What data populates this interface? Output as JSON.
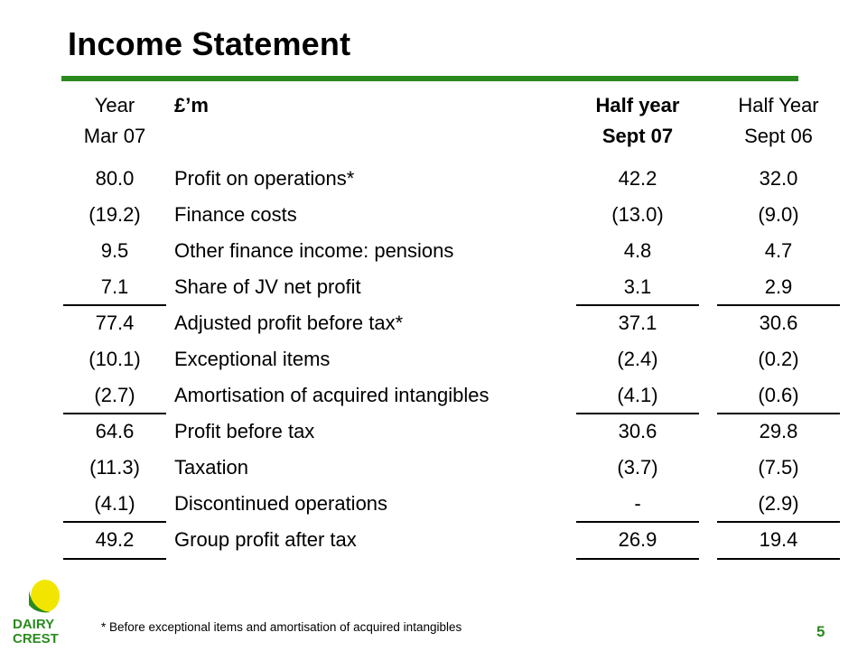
{
  "title": "Income Statement",
  "headers": {
    "year": [
      "Year",
      "Mar 07"
    ],
    "label": "£’m",
    "half1": [
      "Half year",
      "Sept 07"
    ],
    "half2": [
      "Half Year",
      "Sept 06"
    ]
  },
  "rows": [
    {
      "year": "80.0",
      "label": "Profit on operations*",
      "h1": "42.2",
      "h2": "32.0"
    },
    {
      "year": "(19.2)",
      "label": "Finance costs",
      "h1": "(13.0)",
      "h2": "(9.0)"
    },
    {
      "year": "9.5",
      "label": "Other finance income: pensions",
      "h1": "4.8",
      "h2": "4.7"
    },
    {
      "year": "7.1",
      "label": "Share of JV net profit",
      "h1": "3.1",
      "h2": "2.9"
    },
    {
      "year": "77.4",
      "label": "Adjusted profit before tax*",
      "h1": "37.1",
      "h2": "30.6"
    },
    {
      "year": "(10.1)",
      "label": "Exceptional items",
      "h1": "(2.4)",
      "h2": "(0.2)"
    },
    {
      "year": "(2.7)",
      "label": "Amortisation of acquired intangibles",
      "h1": "(4.1)",
      "h2": "(0.6)"
    },
    {
      "year": "64.6",
      "label": "Profit before tax",
      "h1": "30.6",
      "h2": "29.8"
    },
    {
      "year": "(11.3)",
      "label": "Taxation",
      "h1": "(3.7)",
      "h2": "(7.5)"
    },
    {
      "year": "(4.1)",
      "label": "Discontinued operations",
      "h1": "-",
      "h2": "(2.9)"
    },
    {
      "year": "49.2",
      "label": "Group profit after tax",
      "h1": "26.9",
      "h2": "19.4"
    }
  ],
  "footnote": "* Before exceptional items and amortisation of acquired intangibles",
  "page_number": "5",
  "logo": {
    "text_top": "DAIRY",
    "text_bottom": "CREST",
    "icon": "sun-logo-icon"
  },
  "colors": {
    "accent": "#2b8a1f",
    "logo_sun": "#f2e600",
    "logo_text": "#2b8a1f"
  }
}
